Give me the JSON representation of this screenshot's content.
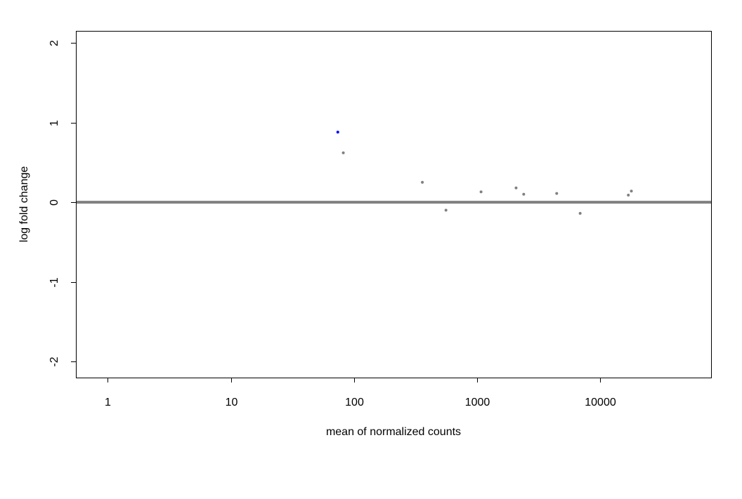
{
  "chart_data": {
    "type": "scatter",
    "title": "",
    "xlabel": "mean of normalized counts",
    "ylabel": "log fold change",
    "x_scale": "log10",
    "xlim": [
      0.55,
      80000
    ],
    "ylim": [
      -2.2,
      2.15
    ],
    "x_ticks": [
      {
        "value": 1,
        "label": "1"
      },
      {
        "value": 10,
        "label": "10"
      },
      {
        "value": 100,
        "label": "100"
      },
      {
        "value": 1000,
        "label": "1000"
      },
      {
        "value": 10000,
        "label": "10000"
      }
    ],
    "y_ticks": [
      {
        "value": 2,
        "label": "2"
      },
      {
        "value": 1,
        "label": "1"
      },
      {
        "value": 0,
        "label": "0"
      },
      {
        "value": -1,
        "label": "-1"
      },
      {
        "value": -2,
        "label": "-2"
      }
    ],
    "reference_line": {
      "y": 0,
      "color": "#808080"
    },
    "grid": false,
    "series": [
      {
        "color": "#0000ff",
        "points": [
          {
            "x": 74,
            "y": 0.88
          }
        ]
      },
      {
        "color": "#808080",
        "points": [
          {
            "x": 82,
            "y": 0.62
          },
          {
            "x": 360,
            "y": 0.25
          },
          {
            "x": 560,
            "y": -0.1
          },
          {
            "x": 1080,
            "y": 0.13
          },
          {
            "x": 2080,
            "y": 0.18
          },
          {
            "x": 2400,
            "y": 0.1
          },
          {
            "x": 4450,
            "y": 0.11
          },
          {
            "x": 6900,
            "y": -0.14
          },
          {
            "x": 17000,
            "y": 0.09
          },
          {
            "x": 18000,
            "y": 0.14
          }
        ]
      }
    ]
  }
}
